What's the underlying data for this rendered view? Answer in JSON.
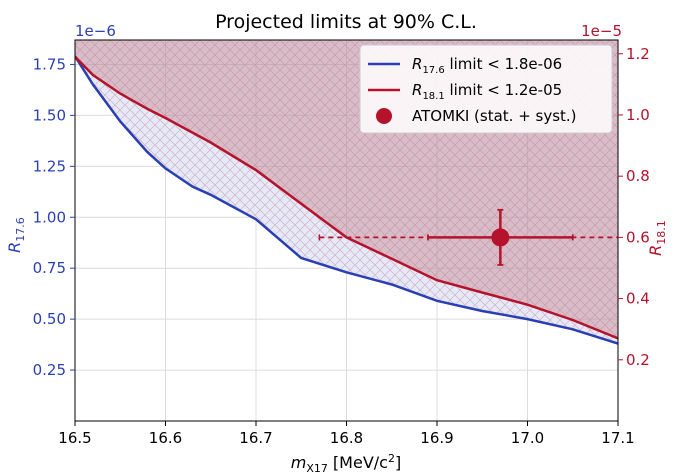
{
  "chart_data": {
    "type": "line",
    "title": "Projected limits at 90% C.L.",
    "xlabel_main": "m",
    "xlabel_sub": "X17",
    "xlabel_unit": "[MeV/c",
    "xlabel_unit_sup": "2",
    "xlabel_close": "]",
    "xlim": [
      16.5,
      17.1
    ],
    "xticks": [
      "16.5",
      "16.6",
      "16.7",
      "16.8",
      "16.9",
      "17.0",
      "17.1"
    ],
    "xtick_values": [
      16.5,
      16.6,
      16.7,
      16.8,
      16.9,
      17.0,
      17.1
    ],
    "grid": true,
    "legend_position": "top-right",
    "left_axis": {
      "label_main": "R",
      "label_sub": "17.6",
      "scale_label": "1e−6",
      "ylim": [
        0.0,
        1.87
      ],
      "ticks": [
        "0.25",
        "0.50",
        "0.75",
        "1.00",
        "1.25",
        "1.50",
        "1.75"
      ],
      "tick_values": [
        0.25,
        0.5,
        0.75,
        1.0,
        1.25,
        1.5,
        1.75
      ],
      "color": "#2b3fb5"
    },
    "right_axis": {
      "label_main": "R",
      "label_sub": "18.1",
      "scale_label": "1e−5",
      "ylim": [
        0.0,
        1.245
      ],
      "ticks": [
        "0.2",
        "0.4",
        "0.6",
        "0.8",
        "1.0",
        "1.2"
      ],
      "tick_values": [
        0.2,
        0.4,
        0.6,
        0.8,
        1.0,
        1.2
      ],
      "color": "#b5132b"
    },
    "series": [
      {
        "name_main": "R",
        "name_sub": "17.6",
        "name_rest": " limit < 1.8e-06",
        "axis": "left",
        "color": "#2b3fb5",
        "x": [
          16.5,
          16.52,
          16.55,
          16.58,
          16.6,
          16.63,
          16.65,
          16.7,
          16.75,
          16.8,
          16.85,
          16.9,
          16.95,
          17.0,
          17.05,
          17.1
        ],
        "y": [
          1.79,
          1.65,
          1.47,
          1.32,
          1.24,
          1.15,
          1.11,
          0.99,
          0.8,
          0.73,
          0.67,
          0.59,
          0.54,
          0.5,
          0.45,
          0.38
        ]
      },
      {
        "name_main": "R",
        "name_sub": "18.1",
        "name_rest": " limit < 1.2e-05",
        "axis": "right",
        "color": "#b5132b",
        "x": [
          16.5,
          16.52,
          16.55,
          16.58,
          16.6,
          16.65,
          16.7,
          16.75,
          16.8,
          16.85,
          16.9,
          16.95,
          17.0,
          17.05,
          17.1
        ],
        "y": [
          1.19,
          1.13,
          1.07,
          1.02,
          0.99,
          0.91,
          0.82,
          0.71,
          0.6,
          0.53,
          0.46,
          0.42,
          0.38,
          0.33,
          0.27
        ]
      }
    ],
    "marker": {
      "label": "ATOMKI (stat. + syst.)",
      "axis": "right",
      "color": "#b5132b",
      "x": 16.97,
      "y": 0.6,
      "xerr_stat": [
        16.89,
        17.05
      ],
      "xerr_syst": [
        16.77,
        17.1
      ],
      "yerr": [
        0.51,
        0.69
      ]
    },
    "excluded_region_color": "#b8869b"
  }
}
